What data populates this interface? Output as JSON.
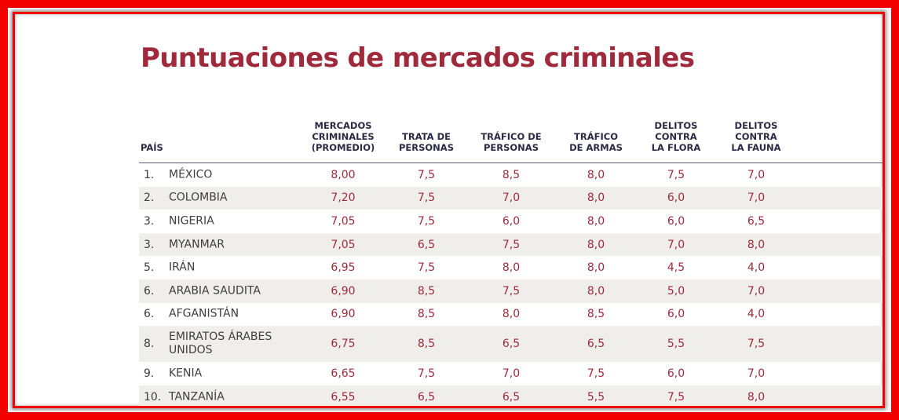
{
  "title": "Puntuaciones de mercados criminales",
  "colors": {
    "accent": "#9e2a3c",
    "frame": "#f20000",
    "stripe": "#efeeeb"
  },
  "headers": {
    "country": "PAÍS",
    "avg": "MERCADOS\nCRIMINALES\n(PROMEDIO)",
    "trata": "TRATA DE\nPERSONAS",
    "trafico_personas": "TRÁFICO DE\nPERSONAS",
    "trafico_armas": "TRÁFICO\nDE ARMAS",
    "flora": "DELITOS\nCONTRA\nLA FLORA",
    "fauna": "DELITOS\nCONTRA\nLA FAUNA"
  },
  "rows": [
    {
      "rank": "1.",
      "name": "MÉXICO",
      "avg": "8,00",
      "trata": "7,5",
      "trafico_personas": "8,5",
      "trafico_armas": "8,0",
      "flora": "7,5",
      "fauna": "7,0"
    },
    {
      "rank": "2.",
      "name": "COLOMBIA",
      "avg": "7,20",
      "trata": "7,5",
      "trafico_personas": "7,0",
      "trafico_armas": "8,0",
      "flora": "6,0",
      "fauna": "7,0"
    },
    {
      "rank": "3.",
      "name": "NIGERIA",
      "avg": "7,05",
      "trata": "7,5",
      "trafico_personas": "6,0",
      "trafico_armas": "8,0",
      "flora": "6,0",
      "fauna": "6,5"
    },
    {
      "rank": "3.",
      "name": "MYANMAR",
      "avg": "7,05",
      "trata": "6,5",
      "trafico_personas": "7,5",
      "trafico_armas": "8,0",
      "flora": "7,0",
      "fauna": "8,0"
    },
    {
      "rank": "5.",
      "name": "IRÁN",
      "avg": "6,95",
      "trata": "7,5",
      "trafico_personas": "8,0",
      "trafico_armas": "8,0",
      "flora": "4,5",
      "fauna": "4,0"
    },
    {
      "rank": "6.",
      "name": "ARABIA SAUDITA",
      "avg": "6,90",
      "trata": "8,5",
      "trafico_personas": "7,5",
      "trafico_armas": "8,0",
      "flora": "5,0",
      "fauna": "7,0"
    },
    {
      "rank": "6.",
      "name": "AFGANISTÁN",
      "avg": "6,90",
      "trata": "8,5",
      "trafico_personas": "8,0",
      "trafico_armas": "8,5",
      "flora": "6,0",
      "fauna": "4,0"
    },
    {
      "rank": "8.",
      "name": "EMIRATOS ÁRABES UNIDOS",
      "avg": "6,75",
      "trata": "8,5",
      "trafico_personas": "6,5",
      "trafico_armas": "6,5",
      "flora": "5,5",
      "fauna": "7,5"
    },
    {
      "rank": "9.",
      "name": "KENIA",
      "avg": "6,65",
      "trata": "7,5",
      "trafico_personas": "7,0",
      "trafico_armas": "7,5",
      "flora": "6,0",
      "fauna": "7,0"
    },
    {
      "rank": "10.",
      "name": "TANZANÍA",
      "avg": "6,55",
      "trata": "6,5",
      "trafico_personas": "6,5",
      "trafico_armas": "5,5",
      "flora": "7,5",
      "fauna": "8,0"
    }
  ]
}
